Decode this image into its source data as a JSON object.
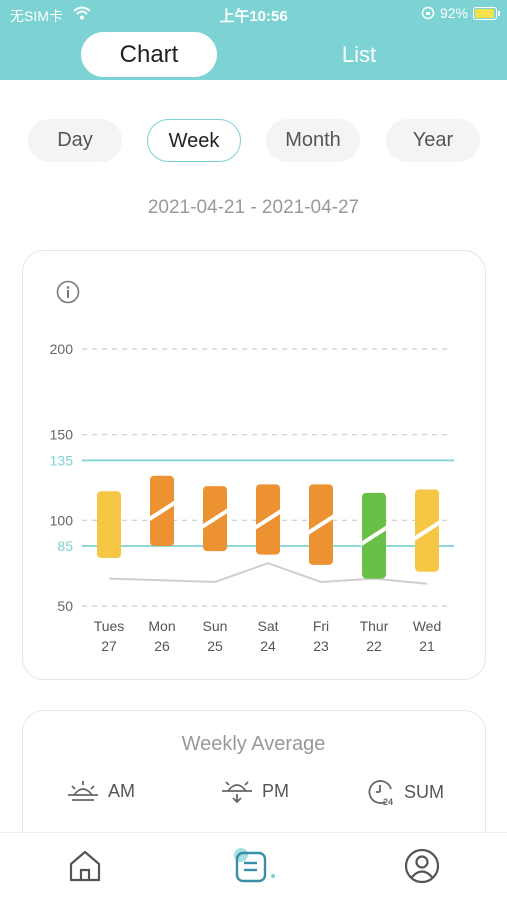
{
  "status": {
    "carrier": "无SIM卡",
    "time": "上午10:56",
    "battery": "92%"
  },
  "tabs": {
    "chart_label": "Chart",
    "list_label": "List"
  },
  "periods": [
    {
      "label": "Day",
      "active": false
    },
    {
      "label": "Week",
      "active": true
    },
    {
      "label": "Month",
      "active": false
    },
    {
      "label": "Year",
      "active": false
    }
  ],
  "date_range": "2021-04-21 - 2021-04-27",
  "chart_data": {
    "type": "bar",
    "xlabel": "",
    "ylabel": "",
    "ylim": [
      50,
      200
    ],
    "yticks": [
      50,
      100,
      150,
      200
    ],
    "reference_lines": [
      135,
      85
    ],
    "categories": [
      {
        "day": "Tues",
        "date": "27"
      },
      {
        "day": "Mon",
        "date": "26"
      },
      {
        "day": "Sun",
        "date": "25"
      },
      {
        "day": "Sat",
        "date": "24"
      },
      {
        "day": "Fri",
        "date": "23"
      },
      {
        "day": "Thur",
        "date": "22"
      },
      {
        "day": "Wed",
        "date": "21"
      }
    ],
    "series": [
      {
        "values_high": [
          117,
          126,
          120,
          121,
          121,
          116,
          118
        ],
        "values_low": [
          78,
          85,
          82,
          80,
          74,
          66,
          70
        ]
      },
      {
        "values": [
          66,
          null,
          64,
          75,
          64,
          66,
          63
        ]
      }
    ],
    "colors": [
      "#f6c744",
      "#ed9233",
      "#ed9233",
      "#ed9233",
      "#ed9233",
      "#6abf46",
      "#f6c744"
    ],
    "line_color": "#cfcfcf",
    "ref_color": "#7dd3d4"
  },
  "summary": {
    "title": "Weekly Average",
    "am_label": "AM",
    "pm_label": "PM",
    "sum_label": "SUM"
  }
}
